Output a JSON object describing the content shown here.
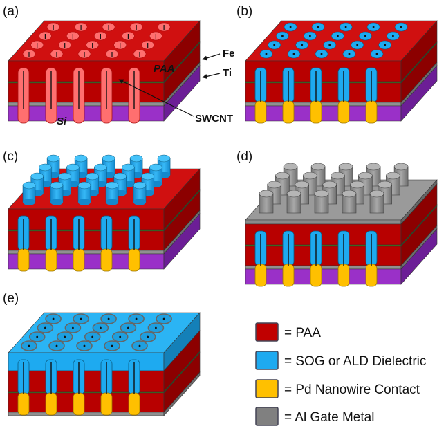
{
  "panels": [
    {
      "label": "(a)"
    },
    {
      "label": "(b)"
    },
    {
      "label": "(c)"
    },
    {
      "label": "(d)"
    },
    {
      "label": "(e)"
    }
  ],
  "annotations": {
    "fe": "Fe",
    "ti": "Ti",
    "paa": "PAA",
    "si": "Si",
    "swcnt": "SWCNT"
  },
  "legend": [
    {
      "label": "= PAA",
      "color": "#c00000"
    },
    {
      "label": "= SOG or ALD Dielectric",
      "color": "#1eaaf0"
    },
    {
      "label": "= Pd Nanowire Contact",
      "color": "#ffc000"
    },
    {
      "label": "= Al Gate Metal",
      "color": "#808080"
    }
  ],
  "colors": {
    "paa_top": "#d01010",
    "paa_front": "#b80000",
    "paa_side": "#8c0000",
    "si_front": "#9a30c8",
    "si_side": "#6c1e96",
    "pore_pink": "#ff6f6f",
    "dielectric": "#1eaaf0",
    "pd": "#ffc000",
    "al": "#8a8a8a"
  }
}
